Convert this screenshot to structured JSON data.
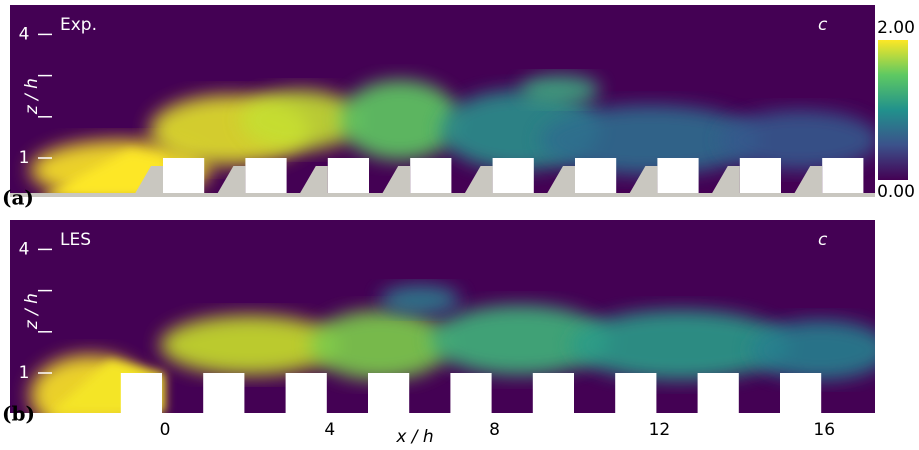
{
  "figure": {
    "panels": [
      {
        "label": "(a)",
        "tag": "Exp.",
        "variable": "c"
      },
      {
        "label": "(b)",
        "tag": "LES",
        "variable": "c"
      }
    ],
    "x_axis": {
      "label": "x / h",
      "ticks": [
        0,
        4,
        8,
        12,
        16
      ]
    },
    "z_axis": {
      "label": "z / h",
      "ticks": [
        1,
        4
      ]
    },
    "colorbar": {
      "ticks": [
        {
          "value": 2,
          "label": "2.00"
        },
        {
          "value": 0,
          "label": "0.00"
        }
      ]
    }
  }
}
